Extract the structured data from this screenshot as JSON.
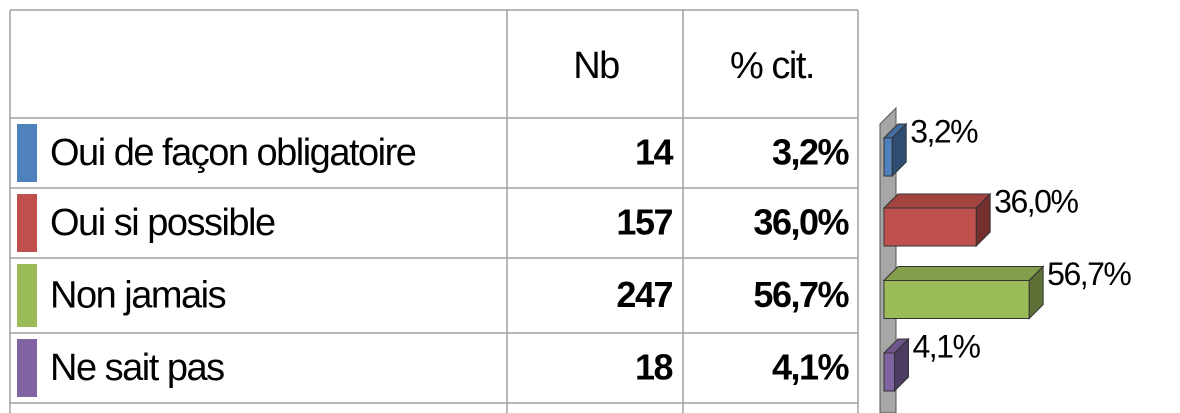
{
  "table": {
    "header": [
      "Nb",
      "% cit."
    ],
    "counts": [
      14,
      157,
      247,
      18
    ]
  },
  "chart_data": {
    "type": "bar",
    "orientation": "horizontal",
    "categories": [
      "Oui de façon obligatoire",
      "Oui si possible",
      "Non jamais",
      "Ne sait pas"
    ],
    "values": [
      3.2,
      36.0,
      56.7,
      4.1
    ],
    "value_labels": [
      "3,2%",
      "36,0%",
      "56,7%",
      "4,1%"
    ],
    "colors": [
      "#4f81bd",
      "#c0504d",
      "#9bbb59",
      "#8064a2"
    ]
  }
}
